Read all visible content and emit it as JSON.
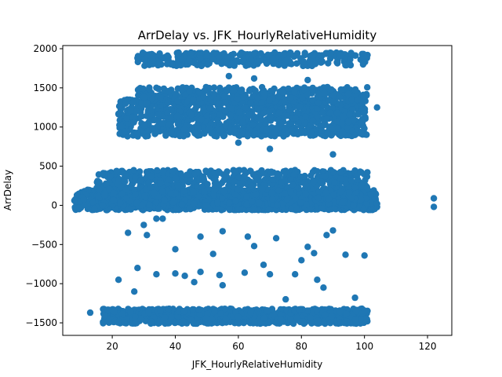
{
  "chart_data": {
    "type": "scatter",
    "title": "ArrDelay vs. JFK_HourlyRelativeHumidity",
    "xlabel": "JFK_HourlyRelativeHumidity",
    "ylabel": "ArrDelay",
    "xlim": [
      4.3,
      127.7
    ],
    "ylim": [
      -1660,
      2040
    ],
    "xticks": [
      20,
      40,
      60,
      80,
      100,
      120
    ],
    "yticks": [
      -1500,
      -1000,
      -500,
      0,
      500,
      1000,
      1500,
      2000
    ],
    "grid": false,
    "marker_color": "#1f77b4",
    "clusters": [
      {
        "x": [
          8,
          104
        ],
        "y": [
          -60,
          200
        ],
        "density": 1500
      },
      {
        "x": [
          15,
          101
        ],
        "y": [
          0,
          450
        ],
        "density": 900
      },
      {
        "x": [
          22,
          101
        ],
        "y": [
          880,
          1350
        ],
        "density": 1000
      },
      {
        "x": [
          28,
          101
        ],
        "y": [
          1300,
          1510
        ],
        "density": 380
      },
      {
        "x": [
          28,
          101
        ],
        "y": [
          1780,
          1950
        ],
        "density": 320
      },
      {
        "x": [
          17,
          101
        ],
        "y": [
          -1510,
          -1320
        ],
        "density": 1000
      }
    ],
    "notable_points": [
      {
        "x": 13,
        "y": -1370
      },
      {
        "x": 22,
        "y": 1170
      },
      {
        "x": 28,
        "y": 1880
      },
      {
        "x": 35,
        "y": 1820
      },
      {
        "x": 45,
        "y": 1950
      },
      {
        "x": 104,
        "y": 1250
      },
      {
        "x": 122,
        "y": 90
      },
      {
        "x": 122,
        "y": -20
      },
      {
        "x": 104,
        "y": 20
      },
      {
        "x": 30,
        "y": -250
      },
      {
        "x": 31,
        "y": -380
      },
      {
        "x": 25,
        "y": -350
      },
      {
        "x": 22,
        "y": -950
      },
      {
        "x": 28,
        "y": -800
      },
      {
        "x": 34,
        "y": -880
      },
      {
        "x": 40,
        "y": -560
      },
      {
        "x": 40,
        "y": -870
      },
      {
        "x": 43,
        "y": -900
      },
      {
        "x": 46,
        "y": -980
      },
      {
        "x": 48,
        "y": -400
      },
      {
        "x": 48,
        "y": -850
      },
      {
        "x": 52,
        "y": -620
      },
      {
        "x": 54,
        "y": -890
      },
      {
        "x": 55,
        "y": -330
      },
      {
        "x": 55,
        "y": -1020
      },
      {
        "x": 62,
        "y": -860
      },
      {
        "x": 63,
        "y": -400
      },
      {
        "x": 65,
        "y": -520
      },
      {
        "x": 68,
        "y": -760
      },
      {
        "x": 70,
        "y": -880
      },
      {
        "x": 72,
        "y": -420
      },
      {
        "x": 75,
        "y": -1200
      },
      {
        "x": 78,
        "y": -880
      },
      {
        "x": 80,
        "y": -700
      },
      {
        "x": 82,
        "y": -530
      },
      {
        "x": 84,
        "y": -610
      },
      {
        "x": 85,
        "y": -950
      },
      {
        "x": 88,
        "y": -380
      },
      {
        "x": 90,
        "y": -320
      },
      {
        "x": 94,
        "y": -630
      },
      {
        "x": 100,
        "y": -640
      },
      {
        "x": 87,
        "y": -1050
      },
      {
        "x": 97,
        "y": -1180
      },
      {
        "x": 27,
        "y": -1100
      },
      {
        "x": 34,
        "y": -170
      },
      {
        "x": 36,
        "y": -170
      },
      {
        "x": 57,
        "y": 1650
      },
      {
        "x": 65,
        "y": 1620
      },
      {
        "x": 82,
        "y": 1600
      },
      {
        "x": 60,
        "y": 800
      },
      {
        "x": 70,
        "y": 720
      },
      {
        "x": 90,
        "y": 650
      }
    ]
  }
}
